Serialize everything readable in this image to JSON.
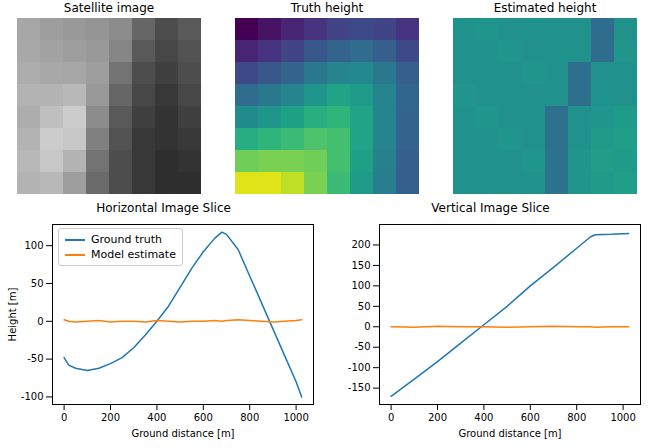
{
  "chart_data": [
    {
      "type": "heatmap",
      "title": "Satellite image",
      "color": "gray",
      "tick_labels": false,
      "zlim": [
        0,
        1
      ],
      "cells": [
        [
          0.65,
          0.62,
          0.6,
          0.58,
          0.55,
          0.4,
          0.3,
          0.35
        ],
        [
          0.66,
          0.64,
          0.62,
          0.6,
          0.52,
          0.35,
          0.28,
          0.32
        ],
        [
          0.68,
          0.66,
          0.65,
          0.62,
          0.45,
          0.3,
          0.25,
          0.3
        ],
        [
          0.7,
          0.7,
          0.72,
          0.6,
          0.4,
          0.28,
          0.22,
          0.28
        ],
        [
          0.68,
          0.75,
          0.8,
          0.55,
          0.35,
          0.25,
          0.2,
          0.25
        ],
        [
          0.7,
          0.8,
          0.78,
          0.5,
          0.32,
          0.22,
          0.2,
          0.22
        ],
        [
          0.72,
          0.78,
          0.7,
          0.45,
          0.3,
          0.22,
          0.18,
          0.2
        ],
        [
          0.7,
          0.72,
          0.62,
          0.42,
          0.3,
          0.22,
          0.18,
          0.18
        ]
      ]
    },
    {
      "type": "heatmap",
      "title": "Truth height",
      "color": "viridis",
      "tick_labels": false,
      "zlim": [
        0,
        1
      ],
      "cells": [
        [
          0.0,
          0.05,
          0.1,
          0.15,
          0.2,
          0.22,
          0.2,
          0.15
        ],
        [
          0.1,
          0.15,
          0.2,
          0.27,
          0.32,
          0.35,
          0.3,
          0.22
        ],
        [
          0.22,
          0.27,
          0.32,
          0.4,
          0.45,
          0.47,
          0.4,
          0.3
        ],
        [
          0.35,
          0.4,
          0.45,
          0.52,
          0.58,
          0.55,
          0.45,
          0.33
        ],
        [
          0.48,
          0.52,
          0.57,
          0.63,
          0.65,
          0.58,
          0.45,
          0.32
        ],
        [
          0.62,
          0.65,
          0.68,
          0.72,
          0.7,
          0.58,
          0.45,
          0.32
        ],
        [
          0.78,
          0.8,
          0.8,
          0.78,
          0.7,
          0.57,
          0.43,
          0.3
        ],
        [
          0.95,
          0.95,
          0.9,
          0.8,
          0.68,
          0.55,
          0.42,
          0.3
        ]
      ]
    },
    {
      "type": "heatmap",
      "title": "Estimated height",
      "color": "viridis",
      "tick_labels": false,
      "zlim": [
        0,
        1
      ],
      "cells": [
        [
          0.5,
          0.52,
          0.5,
          0.51,
          0.5,
          0.5,
          0.35,
          0.5
        ],
        [
          0.51,
          0.5,
          0.52,
          0.5,
          0.51,
          0.5,
          0.35,
          0.52
        ],
        [
          0.5,
          0.51,
          0.5,
          0.52,
          0.5,
          0.36,
          0.5,
          0.51
        ],
        [
          0.52,
          0.5,
          0.51,
          0.5,
          0.5,
          0.36,
          0.51,
          0.5
        ],
        [
          0.5,
          0.52,
          0.5,
          0.51,
          0.37,
          0.5,
          0.52,
          0.55
        ],
        [
          0.51,
          0.5,
          0.52,
          0.5,
          0.37,
          0.51,
          0.55,
          0.56
        ],
        [
          0.5,
          0.51,
          0.5,
          0.52,
          0.38,
          0.52,
          0.56,
          0.55
        ],
        [
          0.51,
          0.5,
          0.51,
          0.5,
          0.38,
          0.52,
          0.55,
          0.56
        ]
      ]
    },
    {
      "type": "line",
      "title": "Horizontal Image Slice",
      "x_label": "Ground distance [m]",
      "y_label": "Height [m]",
      "x": [
        0,
        20,
        50,
        100,
        150,
        200,
        250,
        300,
        350,
        400,
        450,
        500,
        550,
        600,
        650,
        680,
        700,
        750,
        800,
        850,
        900,
        950,
        1000,
        1024
      ],
      "series": [
        {
          "name": "Ground truth",
          "color": "#1f77b4",
          "values": [
            -48,
            -58,
            -62,
            -65,
            -62,
            -56,
            -48,
            -35,
            -18,
            0,
            20,
            45,
            70,
            92,
            110,
            118,
            115,
            95,
            60,
            25,
            -10,
            -45,
            -80,
            -100
          ]
        },
        {
          "name": "Model estimate",
          "color": "#ff7f0e",
          "values": [
            2,
            0,
            -1,
            0,
            1,
            -1,
            0,
            0,
            -1,
            1,
            0,
            -1,
            0,
            0,
            1,
            0,
            1,
            2,
            1,
            0,
            -1,
            0,
            1,
            2
          ]
        }
      ],
      "xlim": [
        -50,
        1075
      ],
      "xticks": [
        0,
        200,
        400,
        600,
        800,
        1000
      ],
      "ylim": [
        -110,
        128
      ],
      "yticks": [
        -100,
        -50,
        0,
        50,
        100
      ],
      "legend": "upper left",
      "grid": false
    },
    {
      "type": "line",
      "title": "Vertical Image Slice",
      "x_label": "Ground distance [m]",
      "x": [
        0,
        100,
        200,
        300,
        400,
        500,
        600,
        700,
        800,
        860,
        880,
        950,
        1024
      ],
      "series": [
        {
          "name": "Ground truth",
          "color": "#1f77b4",
          "values": [
            -170,
            -128,
            -85,
            -40,
            5,
            50,
            100,
            145,
            192,
            220,
            225,
            226,
            228
          ]
        },
        {
          "name": "Model estimate",
          "color": "#ff7f0e",
          "values": [
            0,
            -1,
            1,
            0,
            0,
            -1,
            0,
            1,
            0,
            0,
            -1,
            0,
            0
          ]
        }
      ],
      "xlim": [
        -50,
        1075
      ],
      "xticks": [
        0,
        200,
        400,
        600,
        800,
        1000
      ],
      "ylim": [
        -190,
        250
      ],
      "yticks": [
        -150,
        -100,
        -50,
        0,
        50,
        100,
        150,
        200
      ],
      "grid": false
    }
  ]
}
